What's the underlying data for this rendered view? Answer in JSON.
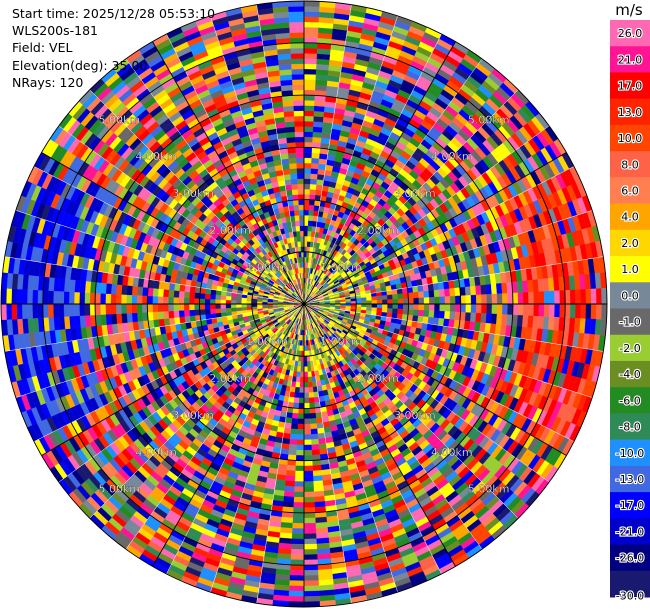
{
  "header": {
    "start_time": "Start time: 2025/12/28 05:53:10",
    "site": "WLS200s-181",
    "field": "Field: VEL",
    "elevation": "Elevation(deg): 35.00",
    "nrays": "NRays: 120"
  },
  "chart_data": {
    "type": "ppi",
    "field": "VEL",
    "elevation_deg": 35.0,
    "n_rays": 120,
    "range_rings_km": [
      1,
      2,
      3,
      4,
      5
    ],
    "ring_label_suffix": ".00km",
    "max_range_km": 5.8,
    "spoke_step_deg": 30,
    "colorbar": {
      "unit": "m/s",
      "tick_labels": [
        "26.0",
        "21.0",
        "17.0",
        "13.0",
        "10.0",
        "8.0",
        "6.0",
        "4.0",
        "2.0",
        "1.0",
        "0.0",
        "-1.0",
        "-2.0",
        "-4.0",
        "-6.0",
        "-8.0",
        "-10.0",
        "-13.0",
        "-17.0",
        "-21.0",
        "-26.0",
        "-30.0"
      ],
      "bins": [
        {
          "low": 26,
          "high": 30,
          "color": "#ff69b4"
        },
        {
          "low": 21,
          "high": 26,
          "color": "#ff1493"
        },
        {
          "low": 17,
          "high": 21,
          "color": "#ff0000"
        },
        {
          "low": 13,
          "high": 17,
          "color": "#ff2400"
        },
        {
          "low": 10,
          "high": 13,
          "color": "#ff4500"
        },
        {
          "low": 8,
          "high": 10,
          "color": "#ff6347"
        },
        {
          "low": 6,
          "high": 8,
          "color": "#ff7f50"
        },
        {
          "low": 4,
          "high": 6,
          "color": "#ffa500"
        },
        {
          "low": 2,
          "high": 4,
          "color": "#ffd700"
        },
        {
          "low": 1,
          "high": 2,
          "color": "#ffff00"
        },
        {
          "low": 0,
          "high": 1,
          "color": "#778899"
        },
        {
          "low": -1,
          "high": 0,
          "color": "#696969"
        },
        {
          "low": -2,
          "high": -1,
          "color": "#9acd32"
        },
        {
          "low": -4,
          "high": -2,
          "color": "#6b8e23"
        },
        {
          "low": -6,
          "high": -4,
          "color": "#228b22"
        },
        {
          "low": -8,
          "high": -6,
          "color": "#2e8b57"
        },
        {
          "low": -10,
          "high": -8,
          "color": "#1e90ff"
        },
        {
          "low": -13,
          "high": -10,
          "color": "#4169e1"
        },
        {
          "low": -17,
          "high": -13,
          "color": "#0000ff"
        },
        {
          "low": -21,
          "high": -17,
          "color": "#0000cd"
        },
        {
          "low": -26,
          "high": -21,
          "color": "#000080"
        },
        {
          "low": -30,
          "high": -26,
          "color": "#191970"
        }
      ]
    }
  }
}
